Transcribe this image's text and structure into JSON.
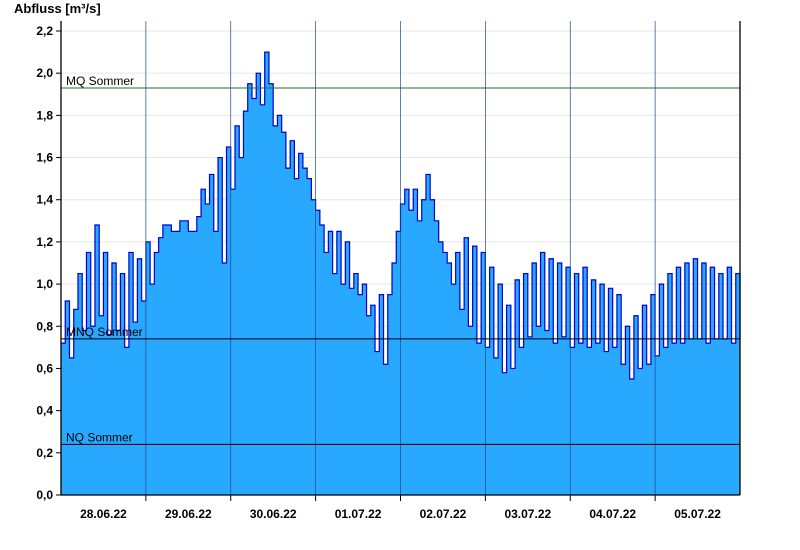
{
  "chart_data": {
    "type": "area",
    "ylabel": "Abfluss [m³/s]",
    "ylim": [
      0,
      2.2
    ],
    "yticks": [
      "0,0",
      "0,2",
      "0,4",
      "0,6",
      "0,8",
      "1,0",
      "1,2",
      "1,4",
      "1,6",
      "1,8",
      "2,0",
      "2,2"
    ],
    "xlim": [
      0,
      8
    ],
    "x_ticks": [
      {
        "label": "28.06.22",
        "x": 0.5
      },
      {
        "label": "29.06.22",
        "x": 1.5
      },
      {
        "label": "30.06.22",
        "x": 2.5
      },
      {
        "label": "01.07.22",
        "x": 3.5
      },
      {
        "label": "02.07.22",
        "x": 4.5
      },
      {
        "label": "03.07.22",
        "x": 5.5
      },
      {
        "label": "04.07.22",
        "x": 6.5
      },
      {
        "label": "05.07.22",
        "x": 7.5
      }
    ],
    "grid": true,
    "fill_color": "#29a8ff",
    "line_color": "#0000cc",
    "reference_lines": [
      {
        "label": "MQ Sommer",
        "value": 1.93,
        "color": "#2e6b2e"
      },
      {
        "label": "MNQ Sommer",
        "value": 0.74,
        "color": "#000000"
      },
      {
        "label": "NQ Sommer",
        "value": 0.24,
        "color": "#000000"
      }
    ],
    "series": [
      {
        "values": [
          [
            0.0,
            0.72
          ],
          [
            0.05,
            0.92
          ],
          [
            0.1,
            0.65
          ],
          [
            0.15,
            0.88
          ],
          [
            0.2,
            1.05
          ],
          [
            0.25,
            0.78
          ],
          [
            0.3,
            1.15
          ],
          [
            0.35,
            0.8
          ],
          [
            0.4,
            1.28
          ],
          [
            0.45,
            0.85
          ],
          [
            0.5,
            1.15
          ],
          [
            0.55,
            0.76
          ],
          [
            0.6,
            1.1
          ],
          [
            0.65,
            0.78
          ],
          [
            0.7,
            1.05
          ],
          [
            0.75,
            0.7
          ],
          [
            0.8,
            1.15
          ],
          [
            0.85,
            0.82
          ],
          [
            0.9,
            1.12
          ],
          [
            0.95,
            0.92
          ],
          [
            1.0,
            1.2
          ],
          [
            1.05,
            1.0
          ],
          [
            1.1,
            1.15
          ],
          [
            1.15,
            1.22
          ],
          [
            1.2,
            1.28
          ],
          [
            1.3,
            1.25
          ],
          [
            1.4,
            1.3
          ],
          [
            1.5,
            1.25
          ],
          [
            1.6,
            1.32
          ],
          [
            1.65,
            1.45
          ],
          [
            1.7,
            1.38
          ],
          [
            1.75,
            1.52
          ],
          [
            1.8,
            1.25
          ],
          [
            1.85,
            1.6
          ],
          [
            1.9,
            1.1
          ],
          [
            1.95,
            1.65
          ],
          [
            2.0,
            1.45
          ],
          [
            2.05,
            1.75
          ],
          [
            2.1,
            1.6
          ],
          [
            2.15,
            1.82
          ],
          [
            2.2,
            1.95
          ],
          [
            2.25,
            1.88
          ],
          [
            2.3,
            2.0
          ],
          [
            2.35,
            1.85
          ],
          [
            2.4,
            2.1
          ],
          [
            2.45,
            1.95
          ],
          [
            2.5,
            1.75
          ],
          [
            2.55,
            1.8
          ],
          [
            2.6,
            1.72
          ],
          [
            2.65,
            1.55
          ],
          [
            2.7,
            1.68
          ],
          [
            2.75,
            1.5
          ],
          [
            2.8,
            1.62
          ],
          [
            2.85,
            1.55
          ],
          [
            2.9,
            1.5
          ],
          [
            2.95,
            1.4
          ],
          [
            3.0,
            1.35
          ],
          [
            3.05,
            1.28
          ],
          [
            3.1,
            1.15
          ],
          [
            3.15,
            1.25
          ],
          [
            3.2,
            1.05
          ],
          [
            3.25,
            1.25
          ],
          [
            3.3,
            1.0
          ],
          [
            3.35,
            1.2
          ],
          [
            3.4,
            0.98
          ],
          [
            3.45,
            1.05
          ],
          [
            3.5,
            0.95
          ],
          [
            3.55,
            1.0
          ],
          [
            3.6,
            0.85
          ],
          [
            3.65,
            0.9
          ],
          [
            3.7,
            0.68
          ],
          [
            3.75,
            0.95
          ],
          [
            3.8,
            0.62
          ],
          [
            3.85,
            0.95
          ],
          [
            3.9,
            1.1
          ],
          [
            3.95,
            1.25
          ],
          [
            4.0,
            1.38
          ],
          [
            4.05,
            1.45
          ],
          [
            4.1,
            1.35
          ],
          [
            4.15,
            1.45
          ],
          [
            4.2,
            1.3
          ],
          [
            4.25,
            1.4
          ],
          [
            4.3,
            1.52
          ],
          [
            4.35,
            1.4
          ],
          [
            4.4,
            1.3
          ],
          [
            4.45,
            1.2
          ],
          [
            4.5,
            1.15
          ],
          [
            4.55,
            1.1
          ],
          [
            4.6,
            1.0
          ],
          [
            4.65,
            1.15
          ],
          [
            4.7,
            0.88
          ],
          [
            4.75,
            1.22
          ],
          [
            4.8,
            0.8
          ],
          [
            4.85,
            1.18
          ],
          [
            4.9,
            0.72
          ],
          [
            4.95,
            1.15
          ],
          [
            5.0,
            0.7
          ],
          [
            5.05,
            1.08
          ],
          [
            5.1,
            0.65
          ],
          [
            5.15,
            1.0
          ],
          [
            5.2,
            0.58
          ],
          [
            5.25,
            0.9
          ],
          [
            5.3,
            0.6
          ],
          [
            5.35,
            1.02
          ],
          [
            5.4,
            0.7
          ],
          [
            5.45,
            1.05
          ],
          [
            5.5,
            0.75
          ],
          [
            5.55,
            1.1
          ],
          [
            5.6,
            0.8
          ],
          [
            5.65,
            1.15
          ],
          [
            5.7,
            0.78
          ],
          [
            5.75,
            1.12
          ],
          [
            5.8,
            0.72
          ],
          [
            5.85,
            1.1
          ],
          [
            5.9,
            0.75
          ],
          [
            5.95,
            1.08
          ],
          [
            6.0,
            0.7
          ],
          [
            6.05,
            1.05
          ],
          [
            6.1,
            0.72
          ],
          [
            6.15,
            1.08
          ],
          [
            6.2,
            0.7
          ],
          [
            6.25,
            1.02
          ],
          [
            6.3,
            0.72
          ],
          [
            6.35,
            1.0
          ],
          [
            6.4,
            0.68
          ],
          [
            6.45,
            0.98
          ],
          [
            6.5,
            0.7
          ],
          [
            6.55,
            0.95
          ],
          [
            6.6,
            0.62
          ],
          [
            6.65,
            0.8
          ],
          [
            6.7,
            0.55
          ],
          [
            6.75,
            0.85
          ],
          [
            6.8,
            0.6
          ],
          [
            6.85,
            0.9
          ],
          [
            6.9,
            0.62
          ],
          [
            6.95,
            0.95
          ],
          [
            7.0,
            0.66
          ],
          [
            7.05,
            1.0
          ],
          [
            7.1,
            0.7
          ],
          [
            7.15,
            1.05
          ],
          [
            7.2,
            0.72
          ],
          [
            7.25,
            1.08
          ],
          [
            7.3,
            0.72
          ],
          [
            7.35,
            1.1
          ],
          [
            7.4,
            0.74
          ],
          [
            7.45,
            1.12
          ],
          [
            7.5,
            0.74
          ],
          [
            7.55,
            1.1
          ],
          [
            7.6,
            0.72
          ],
          [
            7.65,
            1.08
          ],
          [
            7.7,
            0.74
          ],
          [
            7.75,
            1.05
          ],
          [
            7.8,
            0.74
          ],
          [
            7.85,
            1.08
          ],
          [
            7.9,
            0.72
          ],
          [
            7.95,
            1.05
          ],
          [
            8.0,
            0.74
          ]
        ]
      }
    ]
  }
}
